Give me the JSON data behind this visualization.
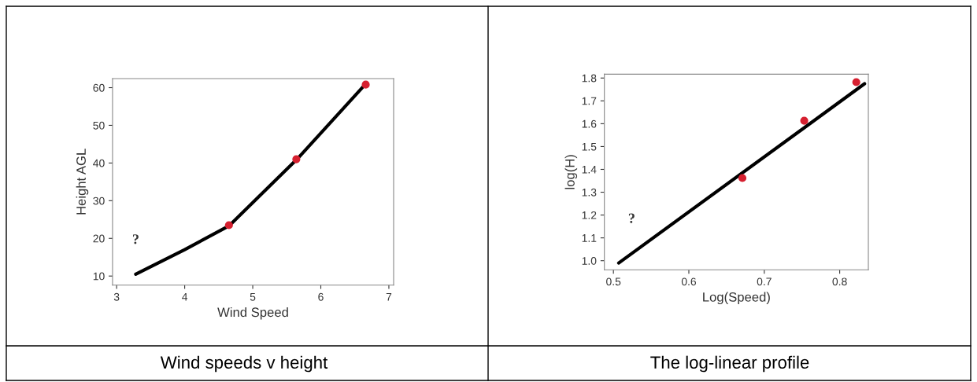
{
  "chart_data": [
    {
      "type": "line",
      "title": "Wind speeds v height",
      "xlabel": "Wind Speed",
      "ylabel": "Height AGL",
      "xlim": [
        2.94,
        7.07
      ],
      "ylim": [
        7.6,
        62.4
      ],
      "xticks": [
        3,
        4,
        5,
        6,
        7
      ],
      "yticks": [
        10,
        20,
        30,
        40,
        50,
        60
      ],
      "grid": false,
      "annotations": [
        "?"
      ],
      "series": [
        {
          "color": "#000000",
          "x": [
            3.28,
            4.0,
            4.65,
            5.65,
            6.65
          ],
          "values": [
            10.5,
            17,
            23.3,
            41,
            60.8
          ]
        },
        {
          "type": "scatter",
          "color": "#d62030",
          "x": [
            4.65,
            5.64,
            6.66
          ],
          "values": [
            23.5,
            41,
            60.8
          ]
        }
      ]
    },
    {
      "type": "line",
      "title": "The log-linear profile",
      "xlabel": "Log(Speed)",
      "ylabel": "log(H)",
      "xlim": [
        0.488,
        0.838
      ],
      "ylim": [
        0.96,
        1.817
      ],
      "xticks": [
        0.5,
        0.6,
        0.7,
        0.8
      ],
      "yticks": [
        {
          "value": 1.0,
          "label": "1.0"
        },
        1.1,
        1.2,
        1.3,
        1.4,
        1.5,
        1.6,
        1.7,
        1.8
      ],
      "grid": false,
      "annotations": [
        "?"
      ],
      "series": [
        {
          "color": "#000000",
          "x": [
            0.507,
            0.833
          ],
          "values": [
            0.99,
            1.775
          ]
        },
        {
          "type": "scatter",
          "color": "#d62030",
          "x": [
            0.671,
            0.753,
            0.822
          ],
          "values": [
            1.362,
            1.613,
            1.782
          ]
        }
      ]
    }
  ]
}
